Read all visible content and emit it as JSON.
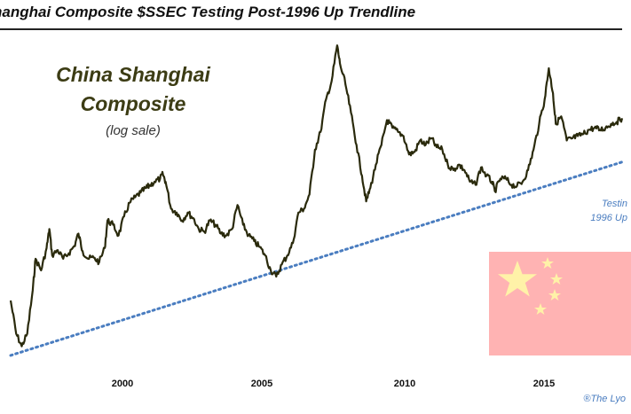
{
  "header": {
    "title": "nanghai Composite $SSEC Testing Post-1996 Up Trendline"
  },
  "chart_data": {
    "type": "line",
    "title": "China Shanghai Composite",
    "subtitle": "(log sale)",
    "xlabel": "",
    "ylabel": "",
    "xlim": [
      1996.0,
      2018.1
    ],
    "ylim_log": [
      500,
      6500
    ],
    "x_ticks": [
      "2000",
      "2005",
      "2010",
      "2015"
    ],
    "series": [
      {
        "color": "#2a2a0c",
        "points": [
          [
            1996.0,
            830
          ],
          [
            1996.2,
            640
          ],
          [
            1996.4,
            580
          ],
          [
            1996.6,
            640
          ],
          [
            1996.8,
            900
          ],
          [
            1996.9,
            1150
          ],
          [
            1997.1,
            1050
          ],
          [
            1997.3,
            1250
          ],
          [
            1997.4,
            1450
          ],
          [
            1997.5,
            1180
          ],
          [
            1997.7,
            1230
          ],
          [
            1997.9,
            1150
          ],
          [
            1998.1,
            1200
          ],
          [
            1998.3,
            1270
          ],
          [
            1998.45,
            1400
          ],
          [
            1998.6,
            1220
          ],
          [
            1998.8,
            1150
          ],
          [
            1999.0,
            1160
          ],
          [
            1999.2,
            1120
          ],
          [
            1999.4,
            1250
          ],
          [
            1999.5,
            1550
          ],
          [
            1999.7,
            1500
          ],
          [
            1999.9,
            1380
          ],
          [
            2000.1,
            1600
          ],
          [
            2000.3,
            1780
          ],
          [
            2000.5,
            1860
          ],
          [
            2000.7,
            1930
          ],
          [
            2000.9,
            2000
          ],
          [
            2001.0,
            2030
          ],
          [
            2001.2,
            2100
          ],
          [
            2001.4,
            2150
          ],
          [
            2001.5,
            2230
          ],
          [
            2001.6,
            2100
          ],
          [
            2001.8,
            1700
          ],
          [
            2002.0,
            1650
          ],
          [
            2002.2,
            1550
          ],
          [
            2002.4,
            1650
          ],
          [
            2002.6,
            1580
          ],
          [
            2002.8,
            1450
          ],
          [
            2003.0,
            1420
          ],
          [
            2003.2,
            1550
          ],
          [
            2003.4,
            1500
          ],
          [
            2003.6,
            1400
          ],
          [
            2003.8,
            1380
          ],
          [
            2004.0,
            1450
          ],
          [
            2004.2,
            1750
          ],
          [
            2004.4,
            1500
          ],
          [
            2004.6,
            1380
          ],
          [
            2004.8,
            1320
          ],
          [
            2005.0,
            1260
          ],
          [
            2005.2,
            1180
          ],
          [
            2005.4,
            1050
          ],
          [
            2005.6,
            1000
          ],
          [
            2005.8,
            1100
          ],
          [
            2006.0,
            1180
          ],
          [
            2006.2,
            1300
          ],
          [
            2006.4,
            1650
          ],
          [
            2006.6,
            1700
          ],
          [
            2006.8,
            1900
          ],
          [
            2007.0,
            2700
          ],
          [
            2007.2,
            3100
          ],
          [
            2007.4,
            4000
          ],
          [
            2007.6,
            4600
          ],
          [
            2007.8,
            6100
          ],
          [
            2007.9,
            5300
          ],
          [
            2008.1,
            4500
          ],
          [
            2008.3,
            3600
          ],
          [
            2008.5,
            2800
          ],
          [
            2008.7,
            2200
          ],
          [
            2008.85,
            1800
          ],
          [
            2009.0,
            2000
          ],
          [
            2009.2,
            2400
          ],
          [
            2009.4,
            2800
          ],
          [
            2009.6,
            3400
          ],
          [
            2009.8,
            3200
          ],
          [
            2010.0,
            3100
          ],
          [
            2010.2,
            3000
          ],
          [
            2010.4,
            2600
          ],
          [
            2010.6,
            2650
          ],
          [
            2010.8,
            2900
          ],
          [
            2011.0,
            2800
          ],
          [
            2011.2,
            2950
          ],
          [
            2011.4,
            2750
          ],
          [
            2011.6,
            2700
          ],
          [
            2011.8,
            2400
          ],
          [
            2012.0,
            2300
          ],
          [
            2012.2,
            2400
          ],
          [
            2012.4,
            2300
          ],
          [
            2012.6,
            2100
          ],
          [
            2012.8,
            2050
          ],
          [
            2013.0,
            2350
          ],
          [
            2013.2,
            2200
          ],
          [
            2013.4,
            2100
          ],
          [
            2013.5,
            1950
          ],
          [
            2013.7,
            2150
          ],
          [
            2013.9,
            2150
          ],
          [
            2014.1,
            2050
          ],
          [
            2014.3,
            2030
          ],
          [
            2014.5,
            2100
          ],
          [
            2014.7,
            2300
          ],
          [
            2014.9,
            2700
          ],
          [
            2015.1,
            3300
          ],
          [
            2015.3,
            4000
          ],
          [
            2015.45,
            5100
          ],
          [
            2015.6,
            4200
          ],
          [
            2015.7,
            3300
          ],
          [
            2015.9,
            3500
          ],
          [
            2016.1,
            2900
          ],
          [
            2016.3,
            2950
          ],
          [
            2016.5,
            3000
          ],
          [
            2016.7,
            3050
          ],
          [
            2016.9,
            3150
          ],
          [
            2017.1,
            3200
          ],
          [
            2017.3,
            3150
          ],
          [
            2017.5,
            3200
          ],
          [
            2017.7,
            3300
          ],
          [
            2017.9,
            3350
          ],
          [
            2018.1,
            3450
          ]
        ]
      }
    ],
    "trendline": {
      "style": "dotted",
      "color": "#4a7dc0",
      "start": [
        1996.0,
        540
      ],
      "end": [
        2018.1,
        2450
      ]
    }
  },
  "annotations": {
    "trend_label_line1": "Testin",
    "trend_label_line2": "1996 Up",
    "copyright": "®The Lyo"
  }
}
